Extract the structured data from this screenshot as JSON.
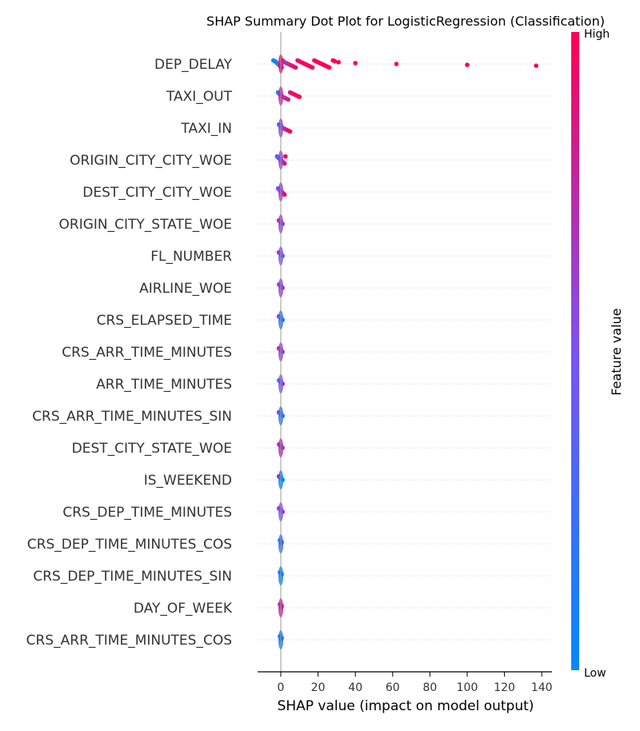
{
  "chart_data": {
    "type": "scatter",
    "title": "SHAP Summary Dot Plot for LogisticRegression (Classification)",
    "xlabel": "SHAP value (impact on model output)",
    "ylabel": "",
    "xlim": [
      -12,
      142
    ],
    "xticks": [
      0,
      20,
      40,
      60,
      80,
      100,
      120,
      140
    ],
    "xtick_labels": [
      "0",
      "20",
      "40",
      "60",
      "80",
      "100",
      "120",
      "140"
    ],
    "features": [
      "DEP_DELAY",
      "TAXI_OUT",
      "TAXI_IN",
      "ORIGIN_CITY_CITY_WOE",
      "DEST_CITY_CITY_WOE",
      "ORIGIN_CITY_STATE_WOE",
      "FL_NUMBER",
      "AIRLINE_WOE",
      "CRS_ELAPSED_TIME",
      "CRS_ARR_TIME_MINUTES",
      "ARR_TIME_MINUTES",
      "CRS_ARR_TIME_MINUTES_SIN",
      "DEST_CITY_STATE_WOE",
      "IS_WEEKEND",
      "CRS_DEP_TIME_MINUTES",
      "CRS_DEP_TIME_MINUTES_COS",
      "CRS_DEP_TIME_MINUTES_SIN",
      "DAY_OF_WEEK",
      "CRS_ARR_TIME_MINUTES_COS"
    ],
    "series": [
      {
        "feature": "DEP_DELAY",
        "points": [
          [
            -4,
            0.0
          ],
          [
            -3,
            0.02
          ],
          [
            -2.5,
            0.05
          ],
          [
            -2,
            0.0
          ],
          [
            -1.5,
            0.1
          ],
          [
            -1,
            0.2
          ],
          [
            -0.5,
            0.3
          ],
          [
            0,
            0.4
          ],
          [
            0.5,
            0.5
          ],
          [
            1,
            0.55
          ],
          [
            1.5,
            0.6
          ],
          [
            2,
            0.65
          ],
          [
            3,
            0.7
          ],
          [
            4,
            0.75
          ],
          [
            5,
            0.8
          ],
          [
            6,
            0.85
          ],
          [
            7,
            0.9
          ],
          [
            8,
            0.92
          ],
          [
            9,
            0.94
          ],
          [
            10,
            0.95
          ],
          [
            11,
            0.96
          ],
          [
            12,
            0.97
          ],
          [
            13,
            0.97
          ],
          [
            14,
            0.98
          ],
          [
            15,
            0.98
          ],
          [
            16,
            0.98
          ],
          [
            17,
            0.99
          ],
          [
            18,
            0.99
          ],
          [
            19,
            0.99
          ],
          [
            20,
            0.99
          ],
          [
            21,
            0.99
          ],
          [
            22,
            0.99
          ],
          [
            23,
            0.99
          ],
          [
            24,
            0.99
          ],
          [
            25,
            0.99
          ],
          [
            26,
            0.99
          ],
          [
            28,
            0.99
          ],
          [
            29,
            1.0
          ],
          [
            31,
            1.0
          ],
          [
            40,
            1.0
          ],
          [
            62,
            1.0
          ],
          [
            100,
            1.0
          ],
          [
            137,
            1.0
          ]
        ]
      },
      {
        "feature": "TAXI_OUT",
        "points": [
          [
            -1.5,
            0.1
          ],
          [
            -1,
            0.2
          ],
          [
            -0.5,
            0.3
          ],
          [
            0,
            0.4
          ],
          [
            0.5,
            0.5
          ],
          [
            1,
            0.6
          ],
          [
            2,
            0.7
          ],
          [
            3,
            0.8
          ],
          [
            4,
            0.85
          ],
          [
            5,
            0.9
          ],
          [
            6,
            0.92
          ],
          [
            7,
            0.94
          ],
          [
            8,
            0.96
          ],
          [
            9,
            0.98
          ],
          [
            10,
            1.0
          ]
        ]
      },
      {
        "feature": "TAXI_IN",
        "points": [
          [
            -1,
            0.1
          ],
          [
            -0.5,
            0.2
          ],
          [
            0,
            0.4
          ],
          [
            0.5,
            0.5
          ],
          [
            1,
            0.6
          ],
          [
            2,
            0.7
          ],
          [
            3,
            0.85
          ],
          [
            4,
            0.92
          ],
          [
            5,
            1.0
          ]
        ]
      },
      {
        "feature": "ORIGIN_CITY_CITY_WOE",
        "points": [
          [
            -2,
            0.3
          ],
          [
            -1.5,
            0.35
          ],
          [
            -1,
            0.4
          ],
          [
            -0.5,
            0.5
          ],
          [
            0,
            0.55
          ],
          [
            0.5,
            0.6
          ],
          [
            1,
            0.7
          ],
          [
            1.5,
            0.8
          ],
          [
            2,
            0.9
          ],
          [
            2.5,
            1.0
          ]
        ]
      },
      {
        "feature": "DEST_CITY_CITY_WOE",
        "points": [
          [
            -1.5,
            0.35
          ],
          [
            -1,
            0.4
          ],
          [
            -0.5,
            0.5
          ],
          [
            0,
            0.55
          ],
          [
            0.5,
            0.65
          ],
          [
            1,
            0.75
          ],
          [
            1.5,
            0.85
          ],
          [
            2,
            1.0
          ]
        ]
      },
      {
        "feature": "ORIGIN_CITY_STATE_WOE",
        "points": [
          [
            -1,
            0.8
          ],
          [
            -0.5,
            0.7
          ],
          [
            0,
            0.6
          ],
          [
            0.5,
            0.5
          ],
          [
            1,
            0.4
          ]
        ]
      },
      {
        "feature": "FL_NUMBER",
        "points": [
          [
            -1,
            0.9
          ],
          [
            -0.5,
            0.7
          ],
          [
            0,
            0.5
          ],
          [
            0.5,
            0.3
          ],
          [
            1,
            0.1
          ]
        ]
      },
      {
        "feature": "AIRLINE_WOE",
        "points": [
          [
            -1,
            0.5
          ],
          [
            -0.5,
            0.55
          ],
          [
            0,
            0.6
          ],
          [
            0.5,
            0.65
          ],
          [
            1,
            0.7
          ]
        ]
      },
      {
        "feature": "CRS_ELAPSED_TIME",
        "points": [
          [
            -1,
            0.9
          ],
          [
            -0.5,
            0.4
          ],
          [
            0,
            0.2
          ],
          [
            0.5,
            0.1
          ],
          [
            1,
            0.05
          ]
        ]
      },
      {
        "feature": "CRS_ARR_TIME_MINUTES",
        "points": [
          [
            -1,
            0.9
          ],
          [
            -0.5,
            0.8
          ],
          [
            0,
            0.6
          ],
          [
            0.5,
            0.4
          ],
          [
            1,
            0.3
          ]
        ]
      },
      {
        "feature": "ARR_TIME_MINUTES",
        "points": [
          [
            -1,
            0.2
          ],
          [
            -0.5,
            0.4
          ],
          [
            0,
            0.5
          ],
          [
            0.5,
            0.6
          ],
          [
            1,
            0.8
          ]
        ]
      },
      {
        "feature": "CRS_ARR_TIME_MINUTES_SIN",
        "points": [
          [
            -1,
            0.9
          ],
          [
            -0.5,
            0.3
          ],
          [
            0,
            0.2
          ],
          [
            0.5,
            0.1
          ],
          [
            1,
            0.05
          ]
        ]
      },
      {
        "feature": "DEST_CITY_STATE_WOE",
        "points": [
          [
            -1,
            0.6
          ],
          [
            -0.5,
            0.65
          ],
          [
            0,
            0.7
          ],
          [
            0.5,
            0.6
          ],
          [
            1,
            0.55
          ]
        ]
      },
      {
        "feature": "IS_WEEKEND",
        "points": [
          [
            -1,
            1.0
          ],
          [
            -0.5,
            1.0
          ],
          [
            0,
            0.0
          ],
          [
            0.5,
            0.0
          ],
          [
            1,
            0.0
          ]
        ]
      },
      {
        "feature": "CRS_DEP_TIME_MINUTES",
        "points": [
          [
            -1,
            0.7
          ],
          [
            -0.5,
            0.6
          ],
          [
            0,
            0.5
          ],
          [
            0.5,
            0.6
          ],
          [
            1,
            0.8
          ]
        ]
      },
      {
        "feature": "CRS_DEP_TIME_MINUTES_COS",
        "points": [
          [
            -0.5,
            0.1
          ],
          [
            0,
            0.05
          ],
          [
            0.5,
            0.2
          ],
          [
            0.3,
            1.0
          ]
        ]
      },
      {
        "feature": "CRS_DEP_TIME_MINUTES_SIN",
        "points": [
          [
            -0.5,
            0.1
          ],
          [
            0,
            0.05
          ],
          [
            0.5,
            0.15
          ]
        ]
      },
      {
        "feature": "DAY_OF_WEEK",
        "points": [
          [
            -0.5,
            0.7
          ],
          [
            0,
            0.6
          ],
          [
            0.5,
            0.75
          ],
          [
            0.3,
            0.9
          ]
        ]
      },
      {
        "feature": "CRS_ARR_TIME_MINUTES_COS",
        "points": [
          [
            -0.5,
            0.05
          ],
          [
            0,
            0.1
          ],
          [
            0.5,
            0.1
          ],
          [
            0.2,
            1.0
          ]
        ]
      }
    ],
    "colorbar": {
      "label": "Feature value",
      "high_label": "High",
      "low_label": "Low",
      "low_color": "#008afb",
      "mid_color": "#7c52f5",
      "high_color": "#ff0052"
    },
    "grid": false
  }
}
